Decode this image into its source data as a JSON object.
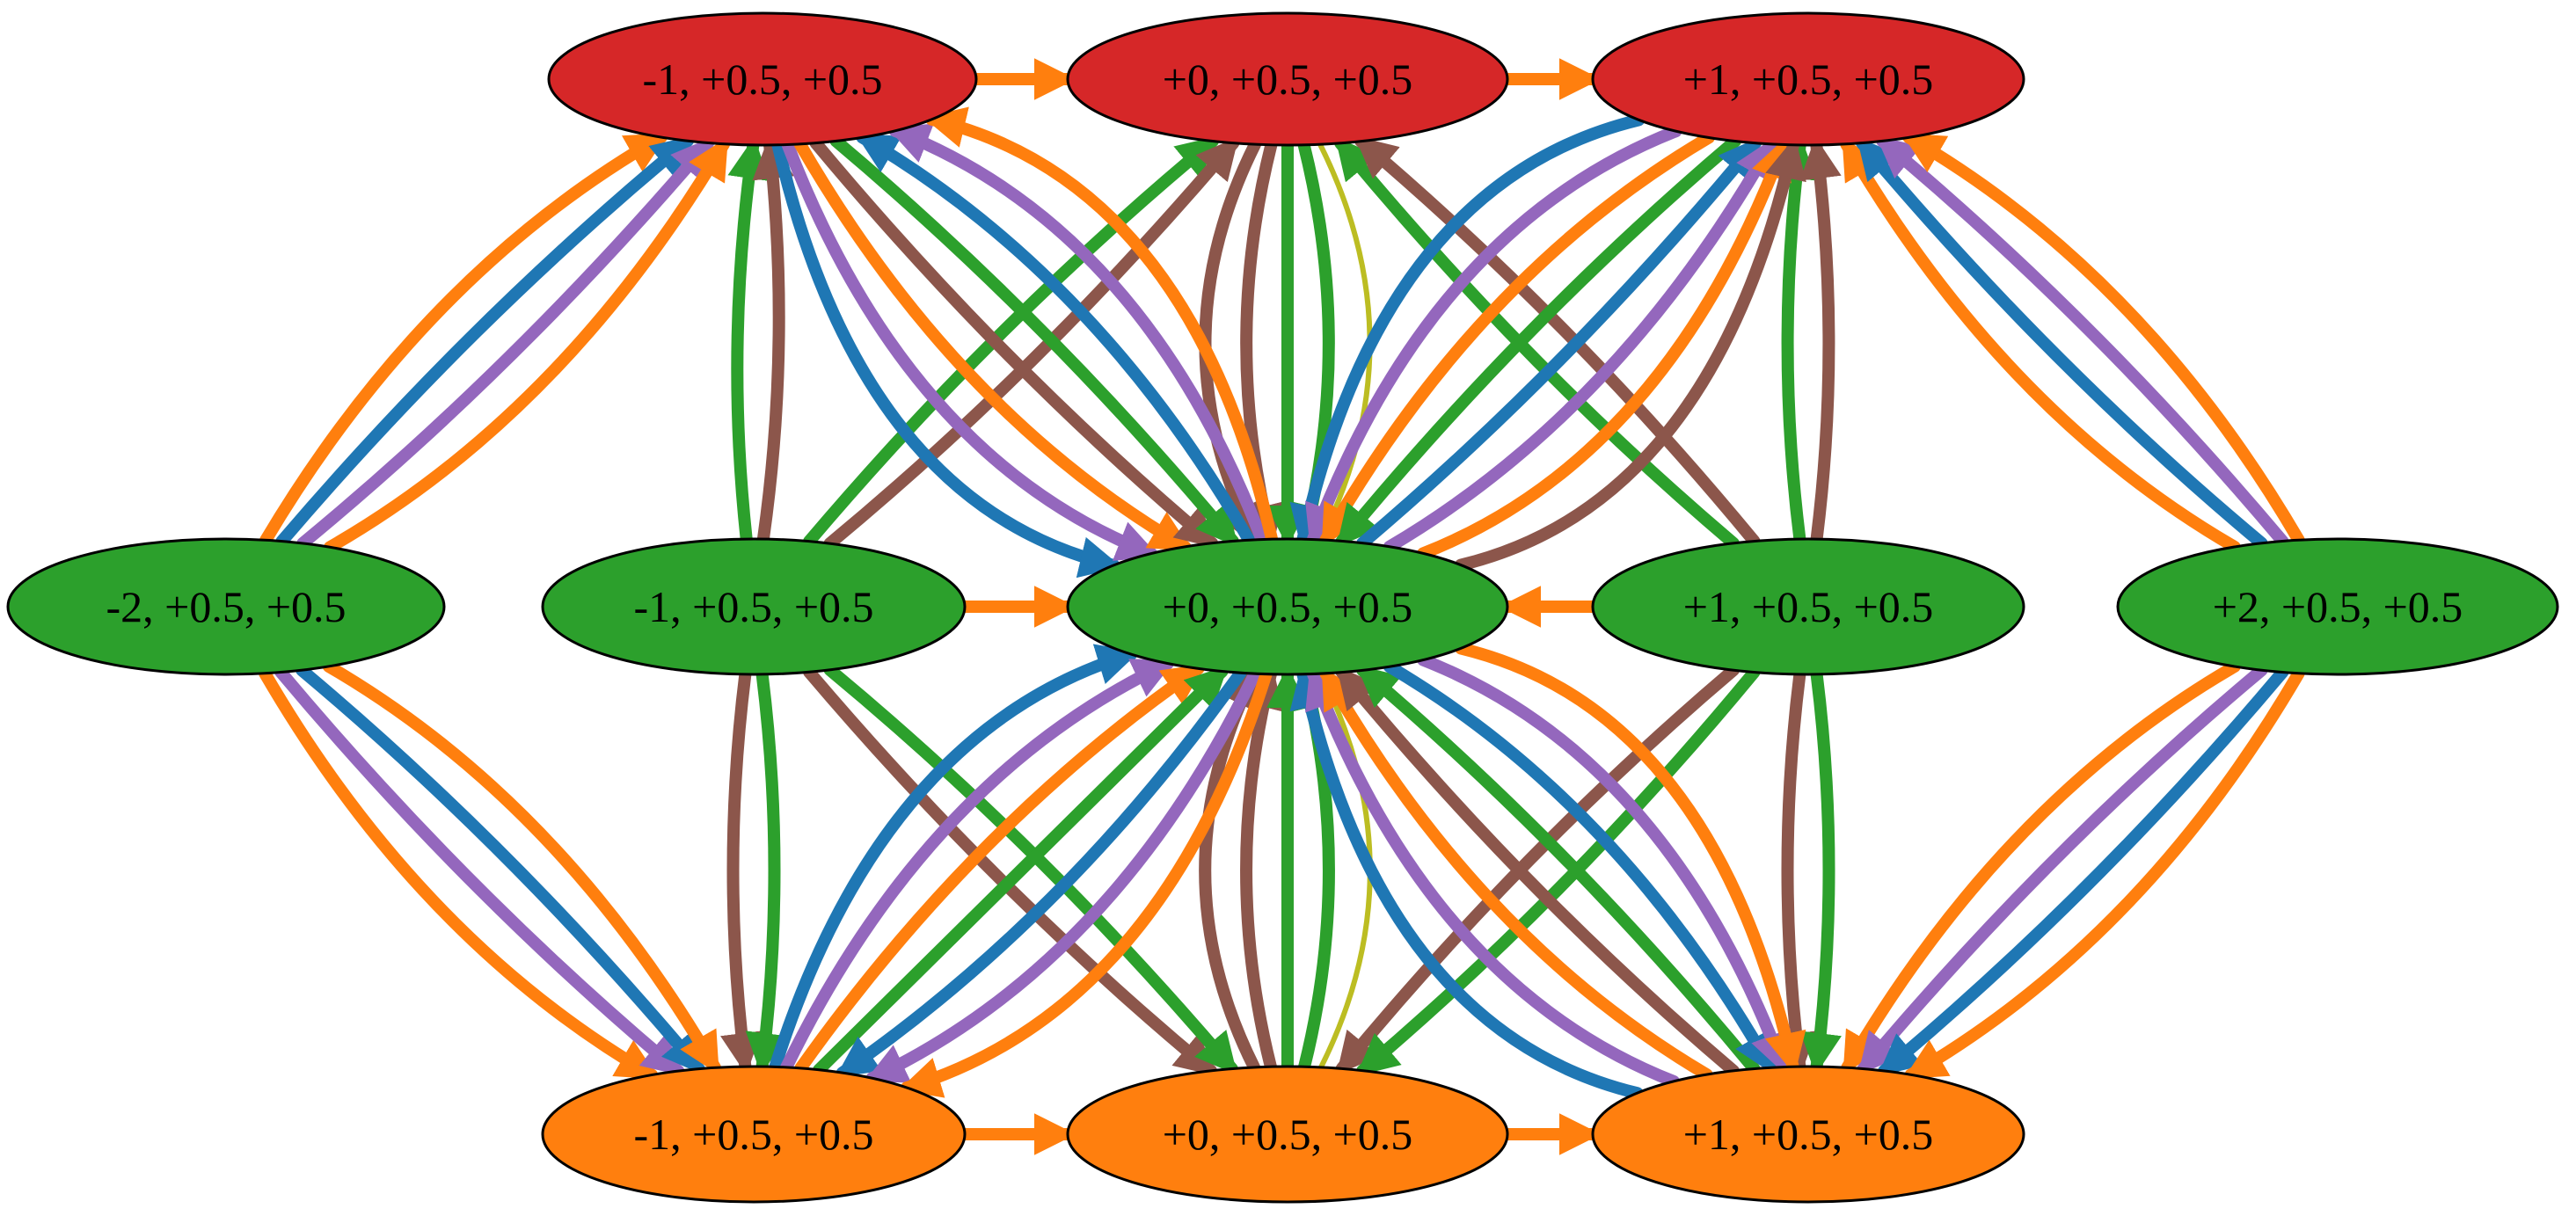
{
  "colors": {
    "blue": "#1f77b4",
    "orange": "#ff7f0e",
    "green": "#2ca02c",
    "red": "#d62728",
    "purple": "#9467bd",
    "brown": "#8c564b",
    "olive": "#bcbd22",
    "outline": "#000000"
  },
  "nodes": [
    {
      "id": "t_m1",
      "label": "-1, +0.5, +0.5",
      "color": "#d62728"
    },
    {
      "id": "t_0",
      "label": "+0, +0.5, +0.5",
      "color": "#d62728"
    },
    {
      "id": "t_p1",
      "label": "+1, +0.5, +0.5",
      "color": "#d62728"
    },
    {
      "id": "m_m2",
      "label": "-2, +0.5, +0.5",
      "color": "#2ca02c"
    },
    {
      "id": "m_m1",
      "label": "-1, +0.5, +0.5",
      "color": "#2ca02c"
    },
    {
      "id": "m_0",
      "label": "+0, +0.5, +0.5",
      "color": "#2ca02c"
    },
    {
      "id": "m_p1",
      "label": "+1, +0.5, +0.5",
      "color": "#2ca02c"
    },
    {
      "id": "m_p2",
      "label": "+2, +0.5, +0.5",
      "color": "#2ca02c"
    },
    {
      "id": "b_m1",
      "label": "-1, +0.5, +0.5",
      "color": "#ff7f0e"
    },
    {
      "id": "b_0",
      "label": "+0, +0.5, +0.5",
      "color": "#ff7f0e"
    },
    {
      "id": "b_p1",
      "label": "+1, +0.5, +0.5",
      "color": "#ff7f0e"
    }
  ],
  "edges": [
    {
      "from": "m_m2",
      "to": "t_m1",
      "color": "orange"
    },
    {
      "from": "m_m2",
      "to": "t_m1",
      "color": "blue"
    },
    {
      "from": "m_m2",
      "to": "t_m1",
      "color": "purple"
    },
    {
      "from": "m_m2",
      "to": "t_m1",
      "color": "orange"
    },
    {
      "from": "m_m2",
      "to": "b_m1",
      "color": "orange"
    },
    {
      "from": "m_m2",
      "to": "b_m1",
      "color": "purple"
    },
    {
      "from": "m_m2",
      "to": "b_m1",
      "color": "blue"
    },
    {
      "from": "m_m2",
      "to": "b_m1",
      "color": "orange"
    },
    {
      "from": "m_p2",
      "to": "t_p1",
      "color": "orange"
    },
    {
      "from": "m_p2",
      "to": "t_p1",
      "color": "blue"
    },
    {
      "from": "m_p2",
      "to": "t_p1",
      "color": "purple"
    },
    {
      "from": "m_p2",
      "to": "t_p1",
      "color": "orange"
    },
    {
      "from": "m_p2",
      "to": "b_p1",
      "color": "orange"
    },
    {
      "from": "m_p2",
      "to": "b_p1",
      "color": "purple"
    },
    {
      "from": "m_p2",
      "to": "b_p1",
      "color": "blue"
    },
    {
      "from": "m_p2",
      "to": "b_p1",
      "color": "orange"
    },
    {
      "from": "m_m1",
      "to": "t_m1",
      "color": "green"
    },
    {
      "from": "m_m1",
      "to": "t_m1",
      "color": "brown"
    },
    {
      "from": "m_m1",
      "to": "b_m1",
      "color": "brown"
    },
    {
      "from": "m_m1",
      "to": "b_m1",
      "color": "green"
    },
    {
      "from": "m_m1",
      "to": "t_0",
      "color": "green"
    },
    {
      "from": "m_m1",
      "to": "t_0",
      "color": "brown"
    },
    {
      "from": "m_m1",
      "to": "b_0",
      "color": "brown"
    },
    {
      "from": "m_m1",
      "to": "b_0",
      "color": "green"
    },
    {
      "from": "m_p1",
      "to": "t_p1",
      "color": "green"
    },
    {
      "from": "m_p1",
      "to": "t_p1",
      "color": "brown"
    },
    {
      "from": "m_p1",
      "to": "b_p1",
      "color": "brown"
    },
    {
      "from": "m_p1",
      "to": "b_p1",
      "color": "green"
    },
    {
      "from": "m_p1",
      "to": "t_0",
      "color": "green"
    },
    {
      "from": "m_p1",
      "to": "t_0",
      "color": "brown"
    },
    {
      "from": "m_p1",
      "to": "b_0",
      "color": "brown"
    },
    {
      "from": "m_p1",
      "to": "b_0",
      "color": "green"
    },
    {
      "from": "t_0",
      "to": "m_0",
      "color": "brown"
    },
    {
      "from": "t_0",
      "to": "m_0",
      "color": "brown"
    },
    {
      "from": "t_0",
      "to": "m_0",
      "color": "green"
    },
    {
      "from": "t_0",
      "to": "m_0",
      "color": "green"
    },
    {
      "from": "t_0",
      "to": "m_0",
      "color": "olive"
    },
    {
      "from": "b_0",
      "to": "m_0",
      "color": "brown"
    },
    {
      "from": "b_0",
      "to": "m_0",
      "color": "brown"
    },
    {
      "from": "b_0",
      "to": "m_0",
      "color": "green"
    },
    {
      "from": "b_0",
      "to": "m_0",
      "color": "green"
    },
    {
      "from": "b_0",
      "to": "m_0",
      "color": "olive"
    },
    {
      "from": "t_m1",
      "to": "m_0",
      "color": "blue"
    },
    {
      "from": "t_m1",
      "to": "m_0",
      "color": "purple"
    },
    {
      "from": "t_m1",
      "to": "m_0",
      "color": "orange"
    },
    {
      "from": "t_m1",
      "to": "m_0",
      "color": "brown"
    },
    {
      "from": "t_m1",
      "to": "m_0",
      "color": "green"
    },
    {
      "from": "m_0",
      "to": "t_m1",
      "color": "blue"
    },
    {
      "from": "m_0",
      "to": "t_m1",
      "color": "purple"
    },
    {
      "from": "m_0",
      "to": "t_m1",
      "color": "orange"
    },
    {
      "from": "t_p1",
      "to": "m_0",
      "color": "blue"
    },
    {
      "from": "t_p1",
      "to": "m_0",
      "color": "purple"
    },
    {
      "from": "t_p1",
      "to": "m_0",
      "color": "orange"
    },
    {
      "from": "t_p1",
      "to": "m_0",
      "color": "green"
    },
    {
      "from": "m_0",
      "to": "t_p1",
      "color": "blue"
    },
    {
      "from": "m_0",
      "to": "t_p1",
      "color": "purple"
    },
    {
      "from": "m_0",
      "to": "t_p1",
      "color": "orange"
    },
    {
      "from": "m_0",
      "to": "t_p1",
      "color": "brown"
    },
    {
      "from": "b_m1",
      "to": "m_0",
      "color": "blue"
    },
    {
      "from": "b_m1",
      "to": "m_0",
      "color": "purple"
    },
    {
      "from": "b_m1",
      "to": "m_0",
      "color": "orange"
    },
    {
      "from": "b_m1",
      "to": "m_0",
      "color": "green"
    },
    {
      "from": "m_0",
      "to": "b_m1",
      "color": "blue"
    },
    {
      "from": "m_0",
      "to": "b_m1",
      "color": "purple"
    },
    {
      "from": "m_0",
      "to": "b_m1",
      "color": "orange"
    },
    {
      "from": "b_p1",
      "to": "m_0",
      "color": "blue"
    },
    {
      "from": "b_p1",
      "to": "m_0",
      "color": "purple"
    },
    {
      "from": "b_p1",
      "to": "m_0",
      "color": "orange"
    },
    {
      "from": "b_p1",
      "to": "m_0",
      "color": "brown"
    },
    {
      "from": "b_p1",
      "to": "m_0",
      "color": "green"
    },
    {
      "from": "m_0",
      "to": "b_p1",
      "color": "blue"
    },
    {
      "from": "m_0",
      "to": "b_p1",
      "color": "purple"
    },
    {
      "from": "m_0",
      "to": "b_p1",
      "color": "orange"
    },
    {
      "from": "t_m1",
      "to": "t_0",
      "color": "orange"
    },
    {
      "from": "t_0",
      "to": "t_p1",
      "color": "orange"
    },
    {
      "from": "b_m1",
      "to": "b_0",
      "color": "orange"
    },
    {
      "from": "b_0",
      "to": "b_p1",
      "color": "orange"
    },
    {
      "from": "m_m1",
      "to": "m_0",
      "color": "orange"
    },
    {
      "from": "m_p1",
      "to": "m_0",
      "color": "orange"
    }
  ]
}
